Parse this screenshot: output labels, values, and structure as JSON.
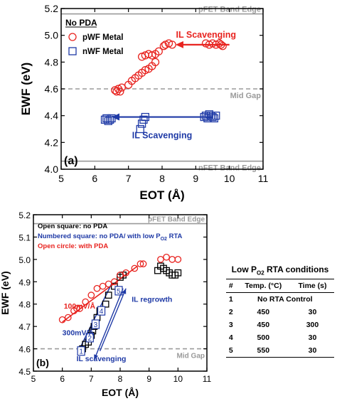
{
  "colors": {
    "red": "#e8231f",
    "blue": "#1f3aa6",
    "black": "#000000",
    "gray": "#9a9a9a",
    "axis": "#000000"
  },
  "chart_data": [
    {
      "type": "scatter",
      "panel": "(a)",
      "xlabel": "EOT (Å)",
      "ylabel": "EWF (eV)",
      "xlim": [
        5,
        11
      ],
      "ylim": [
        4.0,
        5.2
      ],
      "xticks": [
        "5",
        "6",
        "7",
        "8",
        "9",
        "10",
        "11"
      ],
      "yticks": [
        "4.0",
        "4.2",
        "4.4",
        "4.6",
        "4.8",
        "5.0",
        "5.2"
      ],
      "hlines": [
        {
          "y": 5.16,
          "label": "pFET Band Edge",
          "style": "solid"
        },
        {
          "y": 4.6,
          "label": "Mid Gap",
          "style": "dashed"
        },
        {
          "y": 4.06,
          "label": "nFET Band Edge",
          "style": "solid"
        }
      ],
      "legend_title": "No PDA",
      "series": [
        {
          "name": "pWF Metal",
          "marker": "circle",
          "color": "#e8231f",
          "x": [
            6.6,
            6.65,
            6.7,
            6.75,
            6.8,
            7.0,
            7.1,
            7.2,
            7.3,
            7.4,
            7.5,
            7.6,
            7.7,
            7.8,
            7.4,
            7.5,
            7.6,
            7.7,
            7.8,
            7.9,
            8.05,
            8.1,
            8.2,
            8.3,
            9.3,
            9.4,
            9.5,
            9.6,
            9.7,
            9.75,
            9.8
          ],
          "y": [
            4.59,
            4.58,
            4.6,
            4.58,
            4.61,
            4.63,
            4.66,
            4.68,
            4.7,
            4.72,
            4.74,
            4.75,
            4.77,
            4.8,
            4.84,
            4.85,
            4.86,
            4.85,
            4.86,
            4.88,
            4.92,
            4.93,
            4.94,
            4.93,
            4.94,
            4.93,
            4.94,
            4.93,
            4.94,
            4.93,
            4.92
          ]
        },
        {
          "name": "nWF Metal",
          "marker": "square",
          "color": "#1f3aa6",
          "x": [
            6.3,
            6.35,
            6.4,
            6.45,
            6.5,
            7.35,
            7.4,
            7.45,
            7.5,
            9.25,
            9.3,
            9.35,
            9.4,
            9.45,
            9.5,
            9.55,
            9.6
          ],
          "y": [
            4.37,
            4.38,
            4.36,
            4.37,
            4.38,
            4.3,
            4.34,
            4.37,
            4.39,
            4.39,
            4.4,
            4.38,
            4.41,
            4.4,
            4.39,
            4.38,
            4.4
          ]
        }
      ],
      "annotations": [
        {
          "text": "IL Scavenging",
          "color": "#e8231f",
          "arrow": {
            "from": [
              10.0,
              4.93
            ],
            "to": [
              8.4,
              4.93
            ]
          }
        },
        {
          "text": "IL Scavenging",
          "color": "#1f3aa6",
          "arrow": {
            "from": [
              9.5,
              4.39
            ],
            "to": [
              6.5,
              4.39
            ]
          }
        }
      ]
    },
    {
      "type": "scatter",
      "panel": "(b)",
      "xlabel": "EOT (Å)",
      "ylabel": "EWF (eV)",
      "xlim": [
        5,
        11
      ],
      "ylim": [
        4.5,
        5.2
      ],
      "xticks": [
        "5",
        "6",
        "7",
        "8",
        "9",
        "10",
        "11"
      ],
      "yticks": [
        "4.5",
        "4.6",
        "4.7",
        "4.8",
        "4.9",
        "5.0",
        "5.1",
        "5.2"
      ],
      "hlines": [
        {
          "y": 5.16,
          "label": "pFET Band Edge",
          "style": "solid"
        },
        {
          "y": 4.6,
          "label": "Mid Gap",
          "style": "dashed"
        }
      ],
      "legend_notes": [
        {
          "text": "Open square: no PDA",
          "color": "#000000"
        },
        {
          "text": "Numbered square: no PDA/ with low P",
          "sub": "O2",
          "tail": " RTA",
          "color": "#1f3aa6"
        },
        {
          "text": "Open circle: with PDA",
          "color": "#e8231f"
        }
      ],
      "series": [
        {
          "name": "Open square: no PDA",
          "marker": "square",
          "color": "#000000",
          "x": [
            6.7,
            6.8,
            6.9,
            7.0,
            7.05,
            7.1,
            7.2,
            7.3,
            7.5,
            7.6,
            7.8,
            8.0,
            8.1,
            9.3,
            9.4,
            9.5,
            9.6,
            9.7,
            9.8,
            9.9,
            10.0
          ],
          "y": [
            4.6,
            4.62,
            4.63,
            4.66,
            4.68,
            4.7,
            4.74,
            4.77,
            4.8,
            4.84,
            4.88,
            4.92,
            4.93,
            4.95,
            4.97,
            4.96,
            4.95,
            4.94,
            4.93,
            4.93,
            4.94
          ]
        },
        {
          "name": "Open circle: with PDA",
          "marker": "circle",
          "color": "#e8231f",
          "x": [
            6.0,
            6.2,
            6.4,
            6.5,
            6.6,
            6.8,
            7.0,
            7.2,
            7.4,
            7.6,
            7.8,
            8.0,
            8.2,
            8.5,
            8.7,
            8.8,
            9.4,
            9.6,
            9.8,
            10.0
          ],
          "y": [
            4.73,
            4.74,
            4.77,
            4.78,
            4.78,
            4.81,
            4.84,
            4.87,
            4.88,
            4.89,
            4.9,
            4.93,
            4.94,
            4.96,
            4.98,
            4.98,
            5.0,
            5.01,
            5.0,
            5.0
          ]
        },
        {
          "name": "Numbered square",
          "marker": "numbered-square",
          "color": "#1f3aa6",
          "labels": [
            "1",
            "2",
            "3",
            "4",
            "5"
          ],
          "x": [
            6.65,
            6.95,
            7.15,
            7.35,
            7.95
          ],
          "y": [
            4.59,
            4.65,
            4.71,
            4.77,
            4.86
          ]
        }
      ],
      "fits": [
        {
          "color": "#e8231f",
          "from": [
            6.0,
            4.72
          ],
          "to": [
            8.6,
            4.97
          ]
        },
        {
          "color": "#1f3aa6",
          "from": [
            6.6,
            4.6
          ],
          "to": [
            7.7,
            4.89
          ]
        }
      ],
      "annotations": [
        {
          "text": "100mV/Å",
          "color": "#e8231f",
          "x": 6.05,
          "y": 4.78
        },
        {
          "text": "300mV/Å",
          "color": "#1f3aa6",
          "x": 6.0,
          "y": 4.66
        },
        {
          "text": "IL regrowth",
          "color": "#1f3aa6",
          "x": 8.4,
          "y": 4.81
        },
        {
          "text": "IL scavenging",
          "color": "#1f3aa6",
          "x": 7.35,
          "y": 4.545
        }
      ],
      "arrows": [
        {
          "color": "#1f3aa6",
          "from": [
            7.3,
            4.59
          ],
          "to": [
            8.2,
            4.87
          ]
        },
        {
          "color": "#1f3aa6",
          "from": [
            8.1,
            4.87
          ],
          "to": [
            7.1,
            4.55
          ]
        }
      ]
    },
    {
      "type": "table",
      "title": "Low P",
      "title_sub": "O2",
      "title_tail": " RTA conditions",
      "columns": [
        "#",
        "Temp. (°C)",
        "Time (s)"
      ],
      "rows": [
        [
          "1",
          "No RTA Control",
          ""
        ],
        [
          "2",
          "450",
          "30"
        ],
        [
          "3",
          "450",
          "300"
        ],
        [
          "4",
          "500",
          "30"
        ],
        [
          "5",
          "550",
          "30"
        ]
      ]
    }
  ]
}
